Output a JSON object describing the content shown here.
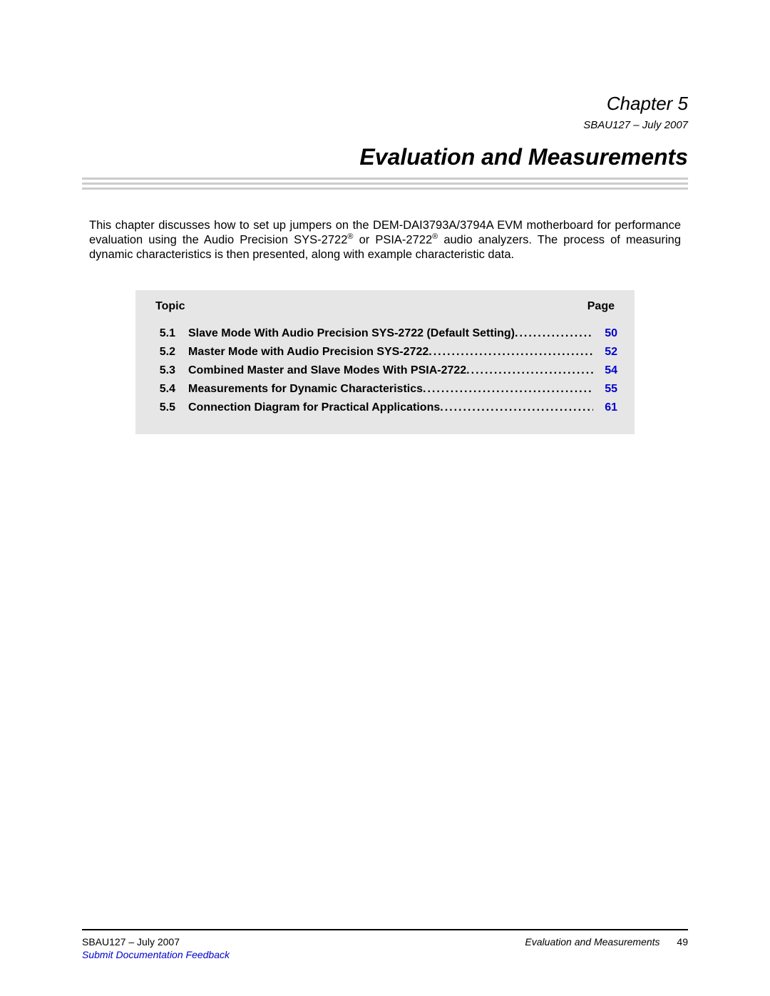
{
  "header": {
    "chapter_label": "Chapter 5",
    "doc_date": "SBAU127 – July 2007"
  },
  "title": "Evaluation and Measurements",
  "intro": {
    "text_before_reg1": "This chapter discusses how to set up jumpers on the DEM-DAI3793A/3794A EVM motherboard for performance evaluation using the Audio Precision SYS-2722",
    "reg1": "®",
    "text_between": " or PSIA-2722",
    "reg2": "®",
    "text_after": " audio analyzers. The process of measuring dynamic characteristics is then presented, along with example characteristic data."
  },
  "toc": {
    "header_left": "Topic",
    "header_right": "Page",
    "rows": [
      {
        "num": "5.1",
        "title": "Slave Mode With Audio Precision SYS-2722 (Default Setting)",
        "page": "50"
      },
      {
        "num": "5.2",
        "title": "Master Mode with Audio Precision SYS-2722 ",
        "page": "52"
      },
      {
        "num": "5.3",
        "title": "Combined Master and Slave Modes With PSIA-2722",
        "page": "54"
      },
      {
        "num": "5.4",
        "title": "Measurements for Dynamic Characteristics ",
        "page": "55"
      },
      {
        "num": "5.5",
        "title": "Connection Diagram for Practical Applications ",
        "page": "61"
      }
    ]
  },
  "footer": {
    "left": "SBAU127 – July 2007",
    "right_title": "Evaluation and Measurements",
    "page_number": "49",
    "link": "Submit Documentation Feedback"
  },
  "colors": {
    "link_color": "#0000cc",
    "rule_gray": "#cccccc",
    "toc_bg": "#e6e6e6"
  }
}
